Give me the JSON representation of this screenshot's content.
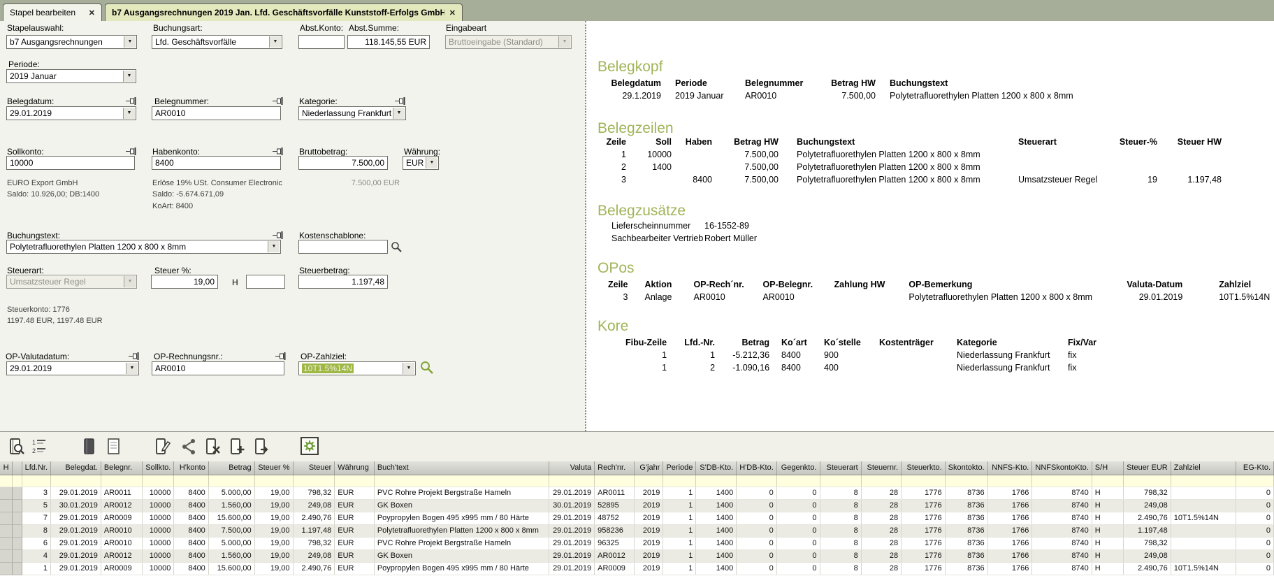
{
  "colors": {
    "accent_green": "#9fb558",
    "selection_green": "#9fb844",
    "filter_yellow": "#ffffdf",
    "tab_active_bg": "#e3e8bd"
  },
  "tabs": [
    {
      "label": "Stapel bearbeiten",
      "close": "✕"
    },
    {
      "label": "b7 Ausgangsrechnungen 2019 Jan. Lfd. Geschäftsvorfälle Kunststoff-Erfolgs GmbH",
      "close": "✕"
    }
  ],
  "form": {
    "stapelauswahl": {
      "label": "Stapelauswahl:",
      "value": "b7 Ausgangsrechnungen"
    },
    "buchungsart": {
      "label": "Buchungsart:",
      "value": "Lfd. Geschäftsvorfälle"
    },
    "abstkonto": {
      "label": "Abst.Konto:",
      "value": ""
    },
    "abstsumme": {
      "label": "Abst.Summe:",
      "value": "118.145,55 EUR"
    },
    "eingabeart": {
      "label": "Eingabeart",
      "value": "Bruttoeingabe (Standard)"
    },
    "periode": {
      "label": "Periode:",
      "value": "2019  Januar"
    },
    "belegdatum": {
      "label": "Belegdatum:",
      "value": "29.01.2019"
    },
    "belegnummer": {
      "label": "Belegnummer:",
      "value": "AR0010"
    },
    "kategorie": {
      "label": "Kategorie:",
      "value": "Niederlassung Frankfurt"
    },
    "sollkonto": {
      "label": "Sollkonto:",
      "value": "10000",
      "info": [
        "EURO Export GmbH",
        "Saldo: 10.926,00; DB:1400"
      ]
    },
    "habenkonto": {
      "label": "Habenkonto:",
      "value": "8400",
      "info": [
        "Erlöse 19% USt. Consumer Electronic",
        "Saldo: -5.674.671,09",
        "KoArt: 8400"
      ]
    },
    "bruttobetrag": {
      "label": "Bruttobetrag:",
      "value": "7.500,00",
      "info": "7.500,00   EUR"
    },
    "waehrung": {
      "label": "Währung:",
      "value": "EUR"
    },
    "buchungstext": {
      "label": "Buchungstext:",
      "value": "Polytetrafluorethylen Platten 1200 x 800 x 8mm"
    },
    "kostenschablone": {
      "label": "Kostenschablone:",
      "value": ""
    },
    "steuerart": {
      "label": "Steuerart:",
      "value": "Umsatzsteuer Regel",
      "info": [
        "Steuerkonto: 1776",
        "1197.48 EUR, 1197.48 EUR"
      ]
    },
    "steuerprozent": {
      "label": "Steuer %:",
      "value": "19,00"
    },
    "steuer_h": {
      "label": "H",
      "value": ""
    },
    "steuerbetrag": {
      "label": "Steuerbetrag:",
      "value": "1.197,48"
    },
    "op_valutadatum": {
      "label": "OP-Valutadatum:",
      "value": "29.01.2019"
    },
    "op_rechnungsnr": {
      "label": "OP-Rechnungsnr.:",
      "value": "AR0010"
    },
    "op_zahlziel": {
      "label": "OP-Zahlziel:",
      "value": "10T1.5%14N"
    }
  },
  "preview": {
    "belegkopf": {
      "title": "Belegkopf",
      "headers": [
        "Belegdatum",
        "Periode",
        "Belegnummer",
        "Betrag HW",
        "Buchungstext"
      ],
      "align": [
        "r",
        "l",
        "l",
        "r",
        "l"
      ],
      "rows": [
        [
          "29.1.2019",
          "2019 Januar",
          "AR0010",
          "7.500,00",
          "Polytetrafluorethylen Platten 1200 x 800 x 8mm"
        ]
      ]
    },
    "belegzeilen": {
      "title": "Belegzeilen",
      "headers": [
        "Zeile",
        "Soll",
        "Haben",
        "Betrag HW",
        "Buchungstext",
        "Steuerart",
        "Steuer-%",
        "Steuer HW"
      ],
      "align": [
        "r",
        "r",
        "r",
        "r",
        "l",
        "l",
        "r",
        "r"
      ],
      "rows": [
        [
          "1",
          "10000",
          "",
          "7.500,00",
          "Polytetrafluorethylen Platten 1200 x 800 x 8mm",
          "",
          "",
          ""
        ],
        [
          "2",
          "1400",
          "",
          "7.500,00",
          "Polytetrafluorethylen Platten 1200 x 800 x 8mm",
          "",
          "",
          ""
        ],
        [
          "3",
          "",
          "8400",
          "7.500,00",
          "Polytetrafluorethylen Platten 1200 x 800 x 8mm",
          "Umsatzsteuer Regel",
          "19",
          "1.197,48"
        ]
      ]
    },
    "belegzusaetze": {
      "title": "Belegzusätze",
      "align": [
        "l",
        "l"
      ],
      "rows": [
        [
          "Lieferscheinnummer",
          "16-1552-89"
        ],
        [
          "Sachbearbeiter Vertrieb",
          "Robert Müller"
        ]
      ]
    },
    "opos": {
      "title": "OPos",
      "headers": [
        "Zeile",
        "Aktion",
        "OP-Rech´nr.",
        "OP-Belegnr.",
        "Zahlung HW",
        "OP-Bemerkung",
        "Valuta-Datum",
        "Zahlziel"
      ],
      "align": [
        "r",
        "l",
        "l",
        "l",
        "r",
        "l",
        "r",
        "l"
      ],
      "rows": [
        [
          "3",
          "Anlage",
          "AR0010",
          "AR0010",
          "",
          "Polytetrafluorethylen Platten 1200 x 800 x 8mm",
          "29.01.2019",
          "10T1.5%14N"
        ]
      ]
    },
    "kore": {
      "title": "Kore",
      "headers": [
        "Fibu-Zeile",
        "Lfd.-Nr.",
        "Betrag",
        "Ko´art",
        "Ko´stelle",
        "Kostenträger",
        "Kategorie",
        "Fix/Var"
      ],
      "align": [
        "r",
        "r",
        "r",
        "l",
        "l",
        "l",
        "l",
        "l"
      ],
      "rows": [
        [
          "1",
          "1",
          "-5.212,36",
          "8400",
          "900",
          "",
          "Niederlassung Frankfurt",
          "fix"
        ],
        [
          "1",
          "2",
          "-1.090,16",
          "8400",
          "400",
          "",
          "Niederlassung Frankfurt",
          "fix"
        ]
      ]
    }
  },
  "toolbar": {
    "icons": [
      "batch-check-icon",
      "renumber-icon",
      "journal-icon",
      "document-icon",
      "edit-icon",
      "share-icon",
      "delete-icon",
      "add-icon",
      "export-icon",
      "settings-icon"
    ]
  },
  "grid": {
    "headers": [
      "H",
      "",
      "Lfd.Nr.",
      "Belegdat.",
      "Belegnr.",
      "Sollkto.",
      "H'konto",
      "Betrag",
      "Steuer %",
      "Steuer",
      "Währung",
      "Buch'text",
      "Valuta",
      "Rech'nr.",
      "G'jahr",
      "Periode",
      "S'DB-Kto.",
      "H'DB-Kto.",
      "Gegenkto.",
      "Steuerart",
      "Steuernr.",
      "Steuerkto.",
      "Skontokto.",
      "NNFS-Kto.",
      "NNFSkontoKto.",
      "S/H",
      "Steuer EUR",
      "Zahlziel",
      "EG-Kto."
    ],
    "align": [
      "c",
      "c",
      "r",
      "r",
      "l",
      "r",
      "r",
      "r",
      "r",
      "r",
      "l",
      "l",
      "r",
      "l",
      "r",
      "r",
      "r",
      "r",
      "r",
      "r",
      "r",
      "r",
      "r",
      "r",
      "r",
      "l",
      "r",
      "l",
      "r"
    ],
    "rows": [
      [
        "",
        "",
        "3",
        "29.01.2019",
        "AR0011",
        "10000",
        "8400",
        "5.000,00",
        "19,00",
        "798,32",
        "EUR",
        "PVC Rohre Projekt Bergstraße Hameln",
        "29.01.2019",
        "AR0011",
        "2019",
        "1",
        "1400",
        "0",
        "0",
        "8",
        "28",
        "1776",
        "8736",
        "1766",
        "8740",
        "H",
        "798,32",
        "",
        "0"
      ],
      [
        "",
        "",
        "5",
        "30.01.2019",
        "AR0012",
        "10000",
        "8400",
        "1.560,00",
        "19,00",
        "249,08",
        "EUR",
        "GK Boxen",
        "30.01.2019",
        "52895",
        "2019",
        "1",
        "1400",
        "0",
        "0",
        "8",
        "28",
        "1776",
        "8736",
        "1766",
        "8740",
        "H",
        "249,08",
        "",
        "0"
      ],
      [
        "",
        "",
        "7",
        "29.01.2019",
        "AR0009",
        "10000",
        "8400",
        "15.600,00",
        "19,00",
        "2.490,76",
        "EUR",
        "Poypropylen Bogen 495 x995 mm / 80 Härte",
        "29.01.2019",
        "48752",
        "2019",
        "1",
        "1400",
        "0",
        "0",
        "8",
        "28",
        "1776",
        "8736",
        "1766",
        "8740",
        "H",
        "2.490,76",
        "10T1.5%14N",
        "0"
      ],
      [
        "",
        "",
        "8",
        "29.01.2019",
        "AR0010",
        "10000",
        "8400",
        "7.500,00",
        "19,00",
        "1.197,48",
        "EUR",
        "Polytetrafluorethylen Platten 1200 x 800 x 8mm",
        "29.01.2019",
        "958236",
        "2019",
        "1",
        "1400",
        "0",
        "0",
        "8",
        "28",
        "1776",
        "8736",
        "1766",
        "8740",
        "H",
        "1.197,48",
        "",
        "0"
      ],
      [
        "",
        "",
        "6",
        "29.01.2019",
        "AR0010",
        "10000",
        "8400",
        "5.000,00",
        "19,00",
        "798,32",
        "EUR",
        "PVC Rohre Projekt Bergstraße Hameln",
        "29.01.2019",
        "96325",
        "2019",
        "1",
        "1400",
        "0",
        "0",
        "8",
        "28",
        "1776",
        "8736",
        "1766",
        "8740",
        "H",
        "798,32",
        "",
        "0"
      ],
      [
        "",
        "",
        "4",
        "29.01.2019",
        "AR0012",
        "10000",
        "8400",
        "1.560,00",
        "19,00",
        "249,08",
        "EUR",
        "GK Boxen",
        "29.01.2019",
        "AR0012",
        "2019",
        "1",
        "1400",
        "0",
        "0",
        "8",
        "28",
        "1776",
        "8736",
        "1766",
        "8740",
        "H",
        "249,08",
        "",
        "0"
      ],
      [
        "",
        "",
        "1",
        "29.01.2019",
        "AR0009",
        "10000",
        "8400",
        "15.600,00",
        "19,00",
        "2.490,76",
        "EUR",
        "Poypropylen Bogen 495 x995 mm / 80 Härte",
        "29.01.2019",
        "AR0009",
        "2019",
        "1",
        "1400",
        "0",
        "0",
        "8",
        "28",
        "1776",
        "8736",
        "1766",
        "8740",
        "H",
        "2.490,76",
        "10T1.5%14N",
        "0"
      ]
    ]
  }
}
